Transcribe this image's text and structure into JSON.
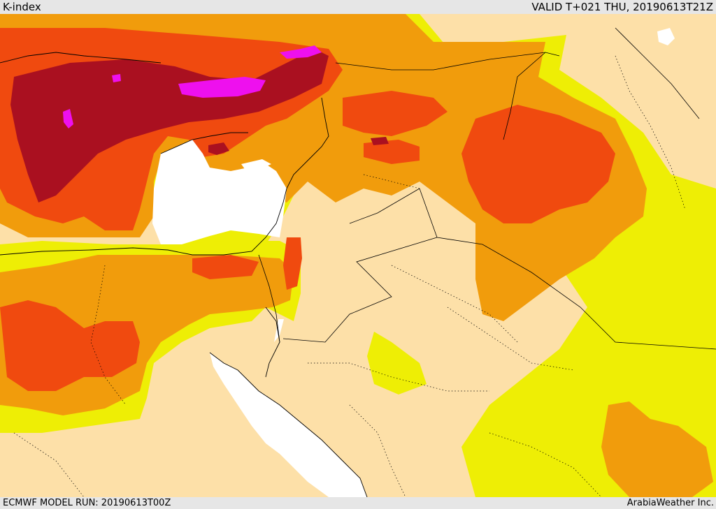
{
  "header": {
    "title": "K-index",
    "valid_time": "VALID T+021 THU, 20190613T21Z"
  },
  "footer": {
    "model_run": "ECMWF MODEL RUN: 20190613T00Z",
    "credit": "ArabiaWeather Inc."
  },
  "map": {
    "field": "K-index",
    "palette": {
      "lowest": "#fde0a8",
      "low": "#eeee05",
      "mid": "#f19c0c",
      "high": "#f04a0f",
      "very_high": "#aa1020",
      "extreme": "#ee10ee",
      "sea": "#ffffff"
    }
  }
}
